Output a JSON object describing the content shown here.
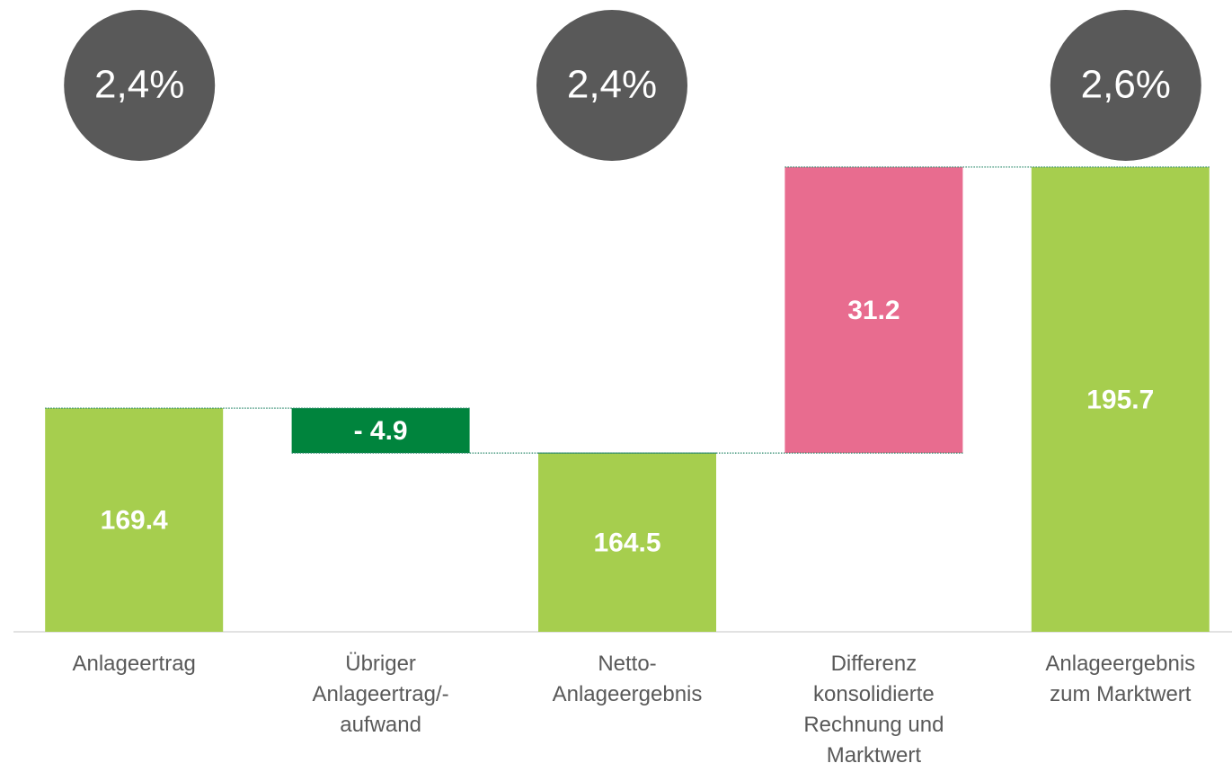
{
  "chart_data": {
    "type": "waterfall",
    "categories": [
      "Anlageertrag",
      "Übriger\nAnlageertrag/-\naufwand",
      "Netto-\nAnlageergebnis",
      "Differenz\nkonsolidierte\nRechnung und\nMarktwert",
      "Anlageergebnis\nzum Marktwert"
    ],
    "values": [
      169.4,
      -4.9,
      164.5,
      31.2,
      195.7
    ],
    "value_labels": [
      "169.4",
      "- 4.9",
      "164.5",
      "31.2",
      "195.7"
    ],
    "totals": [
      true,
      false,
      true,
      false,
      true
    ],
    "colors": [
      "#a6ce4e",
      "#00843d",
      "#a6ce4e",
      "#e86c8f",
      "#a6ce4e"
    ],
    "ylim": [
      145,
      200
    ],
    "annotations": [
      {
        "text": "2,4%",
        "category": 0
      },
      {
        "text": "2,4%",
        "category": 2
      },
      {
        "text": "2,6%",
        "category": 4
      }
    ]
  }
}
